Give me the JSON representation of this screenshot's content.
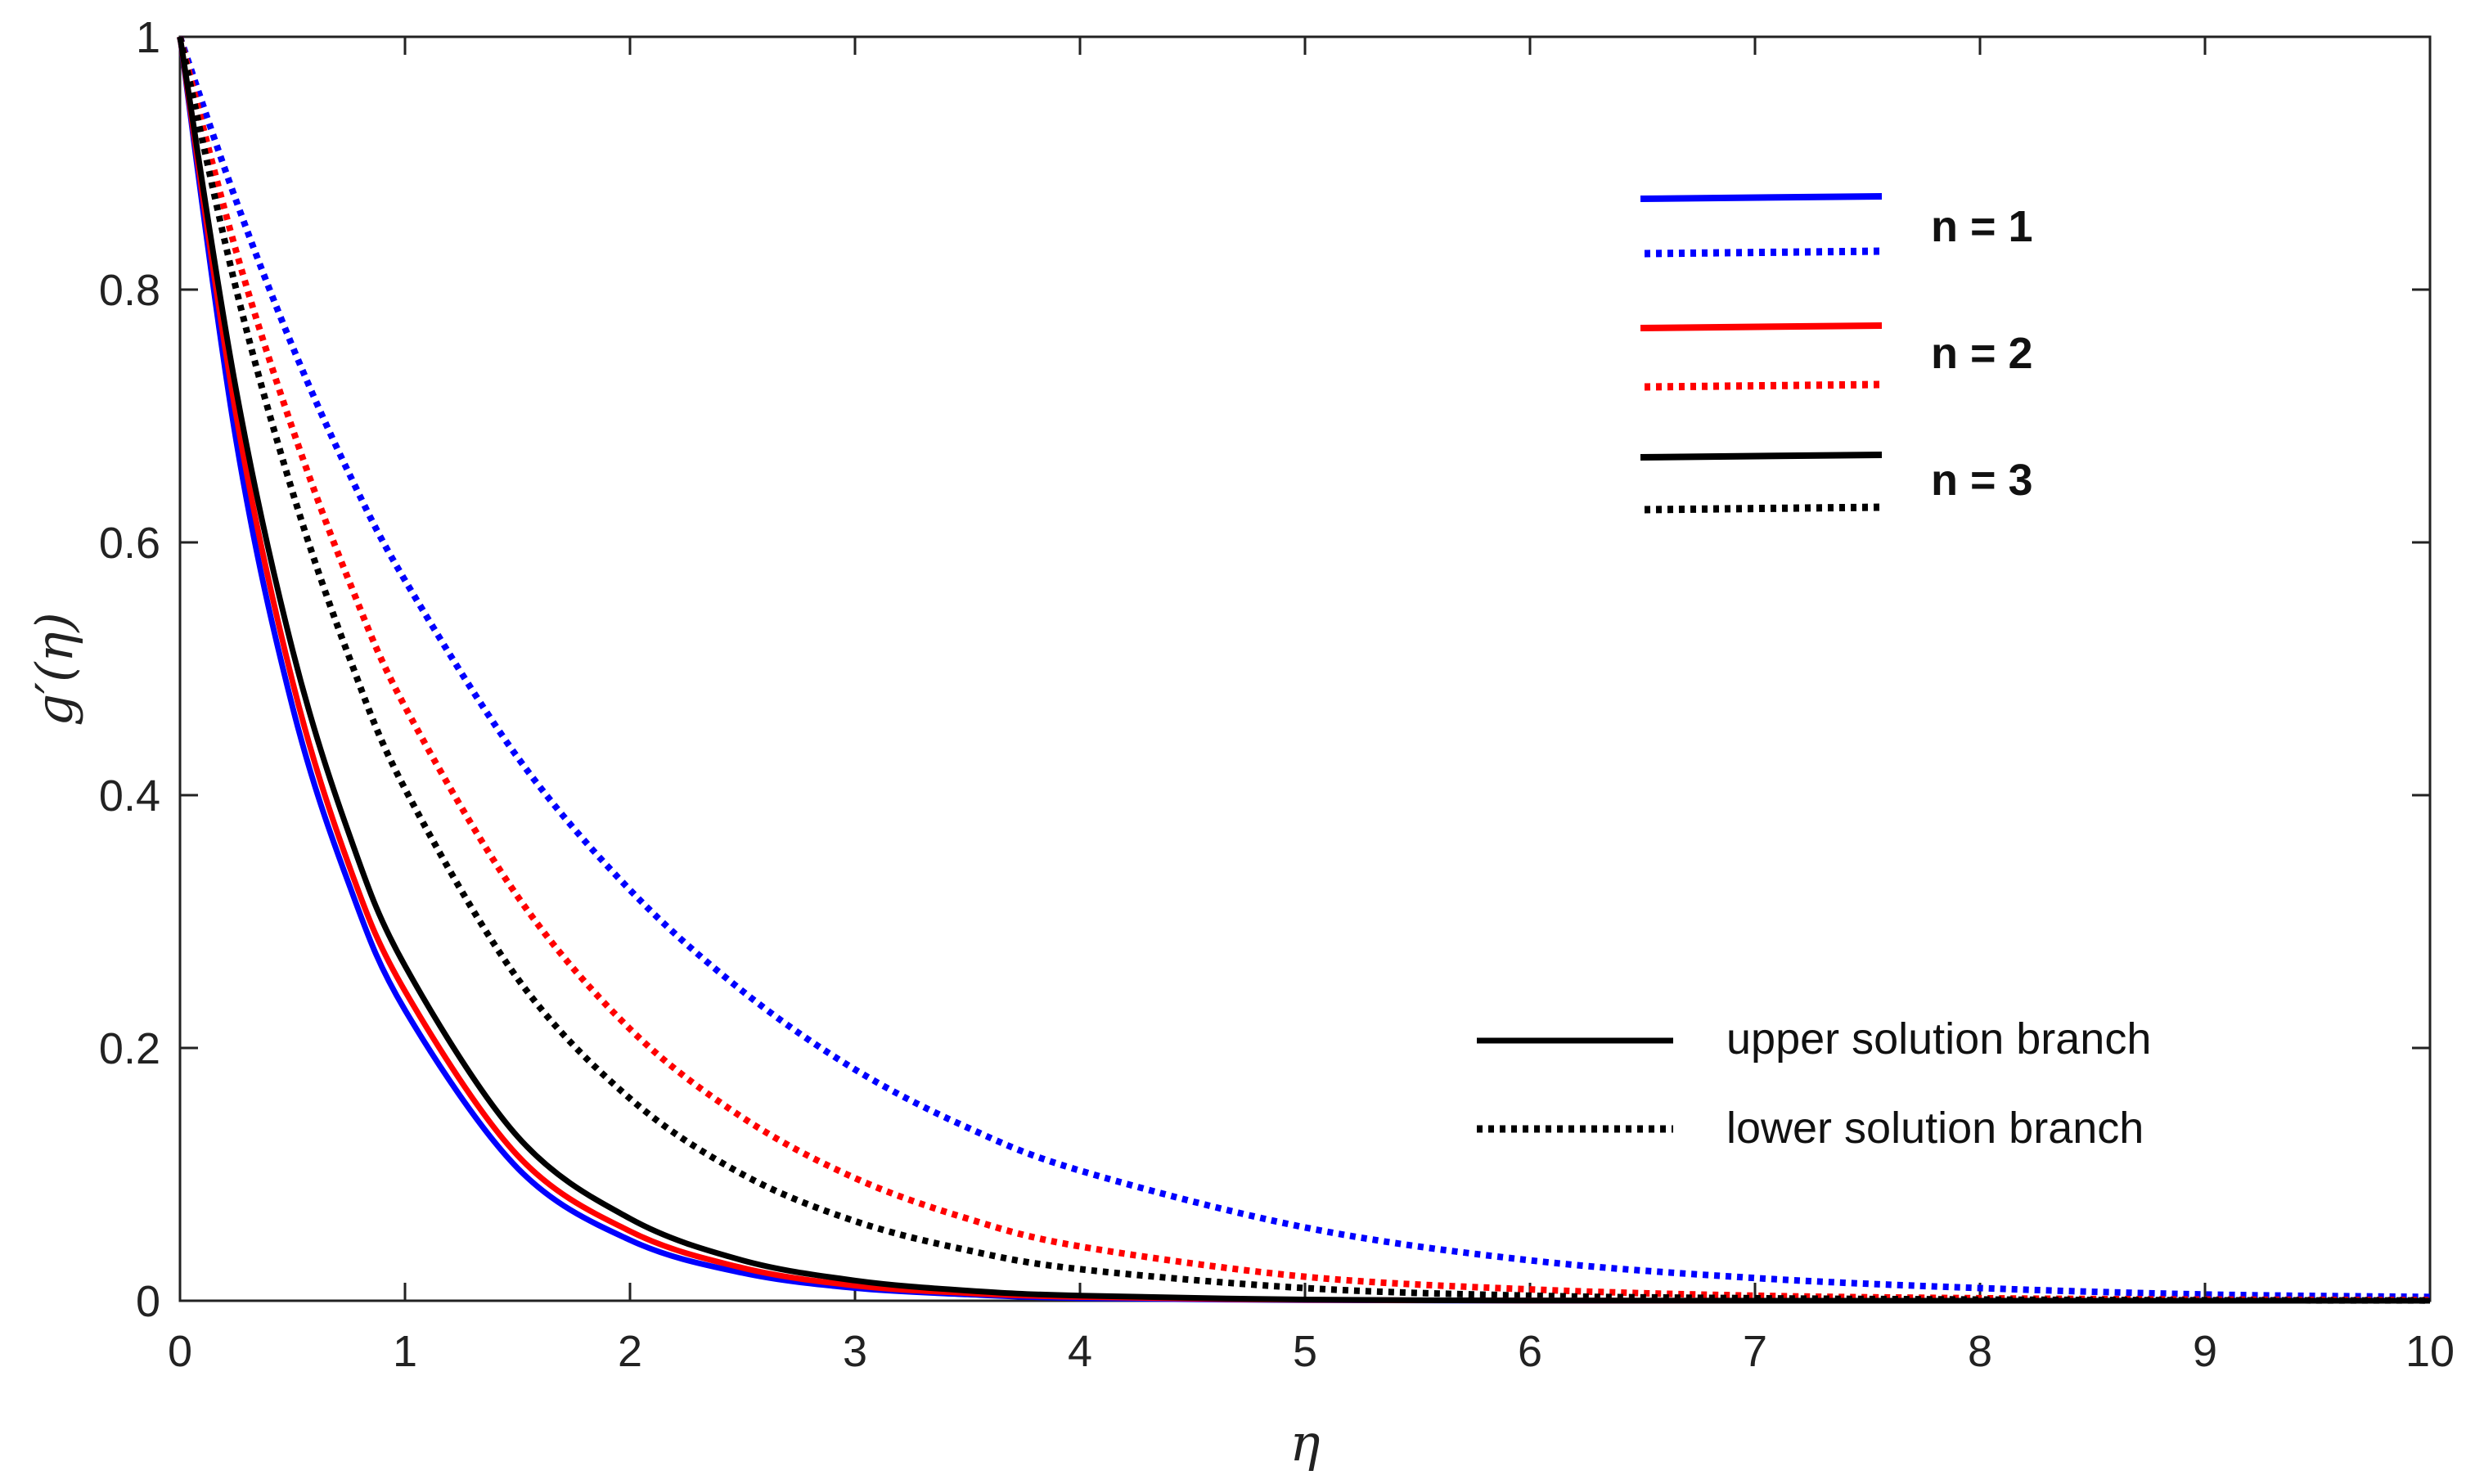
{
  "chart_data": {
    "type": "line",
    "xlabel": "η",
    "ylabel": "g′(η)",
    "xlim": [
      0,
      10
    ],
    "ylim": [
      0,
      1
    ],
    "xticks": [
      "0",
      "1",
      "2",
      "3",
      "4",
      "5",
      "6",
      "7",
      "8",
      "9",
      "10"
    ],
    "yticks": [
      "0",
      "0.2",
      "0.4",
      "0.6",
      "0.8",
      "1"
    ],
    "grid": false,
    "box": true,
    "colors": {
      "n1": "#0000ff",
      "n2": "#ff0000",
      "n3": "#000000"
    },
    "series": [
      {
        "name": "n = 1",
        "branch": "upper",
        "style": "solid",
        "color": "#0000ff",
        "x": [
          0,
          0.25,
          0.5,
          0.75,
          1,
          1.5,
          2,
          2.5,
          3,
          3.5,
          4,
          5,
          6,
          7,
          8,
          9,
          10
        ],
        "y": [
          1,
          0.68,
          0.47,
          0.33,
          0.23,
          0.105,
          0.048,
          0.022,
          0.01,
          0.005,
          0.002,
          0.0005,
          0.0001,
          0,
          0,
          0,
          0
        ]
      },
      {
        "name": "n = 1",
        "branch": "lower",
        "style": "dotted",
        "color": "#0000ff",
        "x": [
          0,
          0.25,
          0.5,
          0.75,
          1,
          1.5,
          2,
          2.5,
          3,
          3.5,
          4,
          5,
          6,
          7,
          8,
          9,
          10
        ],
        "y": [
          1,
          0.87,
          0.755,
          0.655,
          0.57,
          0.43,
          0.325,
          0.245,
          0.183,
          0.137,
          0.103,
          0.058,
          0.032,
          0.018,
          0.01,
          0.005,
          0.003
        ]
      },
      {
        "name": "n = 2",
        "branch": "upper",
        "style": "solid",
        "color": "#ff0000",
        "x": [
          0,
          0.25,
          0.5,
          0.75,
          1,
          1.5,
          2,
          2.5,
          3,
          3.5,
          4,
          5,
          6,
          7,
          8,
          9,
          10
        ],
        "y": [
          1,
          0.7,
          0.49,
          0.345,
          0.245,
          0.115,
          0.055,
          0.026,
          0.012,
          0.006,
          0.003,
          0.0007,
          0.0002,
          0,
          0,
          0,
          0
        ]
      },
      {
        "name": "n = 2",
        "branch": "lower",
        "style": "dotted",
        "color": "#ff0000",
        "x": [
          0,
          0.25,
          0.5,
          0.75,
          1,
          1.5,
          2,
          2.5,
          3,
          3.5,
          4,
          5,
          6,
          7,
          8,
          9,
          10
        ],
        "y": [
          1,
          0.83,
          0.69,
          0.57,
          0.47,
          0.32,
          0.215,
          0.145,
          0.097,
          0.065,
          0.043,
          0.019,
          0.009,
          0.004,
          0.002,
          0.001,
          0.0005
        ]
      },
      {
        "name": "n = 3",
        "branch": "upper",
        "style": "solid",
        "color": "#000000",
        "x": [
          0,
          0.25,
          0.5,
          0.75,
          1,
          1.5,
          2,
          2.5,
          3,
          3.5,
          4,
          5,
          6,
          7,
          8,
          9,
          10
        ],
        "y": [
          1,
          0.72,
          0.515,
          0.37,
          0.265,
          0.13,
          0.065,
          0.032,
          0.016,
          0.008,
          0.004,
          0.001,
          0.0002,
          0,
          0,
          0,
          0
        ]
      },
      {
        "name": "n = 3",
        "branch": "lower",
        "style": "dotted",
        "color": "#000000",
        "x": [
          0,
          0.25,
          0.5,
          0.75,
          1,
          1.5,
          2,
          2.5,
          3,
          3.5,
          4,
          5,
          6,
          7,
          8,
          9,
          10
        ],
        "y": [
          1,
          0.8,
          0.64,
          0.51,
          0.405,
          0.255,
          0.16,
          0.1,
          0.063,
          0.04,
          0.025,
          0.01,
          0.004,
          0.002,
          0.001,
          0.0004,
          0.0002
        ]
      }
    ],
    "legend_colors": {
      "placement": "top-right",
      "entries": [
        {
          "label": "n = 1",
          "color": "#0000ff"
        },
        {
          "label": "n = 2",
          "color": "#ff0000"
        },
        {
          "label": "n = 3",
          "color": "#000000"
        }
      ]
    },
    "legend_styles": {
      "placement": "bottom-right",
      "entries": [
        {
          "label": "upper solution branch",
          "style": "solid",
          "color": "#000000"
        },
        {
          "label": "lower solution branch",
          "style": "dotted",
          "color": "#000000"
        }
      ]
    }
  }
}
